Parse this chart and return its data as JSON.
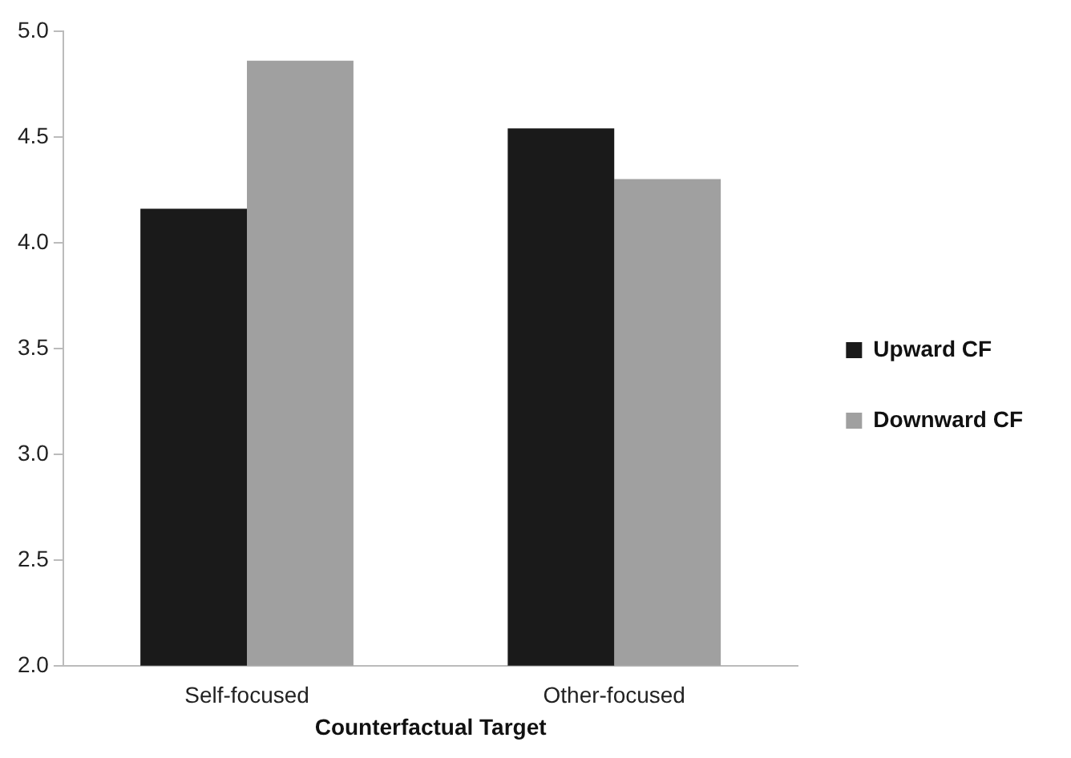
{
  "chart_data": {
    "type": "bar",
    "xlabel": "Counterfactual Target",
    "categories": [
      "Self-focused",
      "Other-focused"
    ],
    "series": [
      {
        "name": "Upward CF",
        "color": "#1a1a1a",
        "values": [
          4.16,
          4.54
        ]
      },
      {
        "name": "Downward CF",
        "color": "#a0a0a0",
        "values": [
          4.86,
          4.3
        ]
      }
    ],
    "ylim": [
      2,
      5
    ],
    "yticks": [
      {
        "value": 2,
        "label": "2.0"
      },
      2.5,
      {
        "value": 3,
        "label": "3.0"
      },
      3.5,
      {
        "value": 4,
        "label": "4.0"
      },
      4.5,
      {
        "value": 5,
        "label": "5.0"
      }
    ],
    "grid": false,
    "legend": "right"
  }
}
